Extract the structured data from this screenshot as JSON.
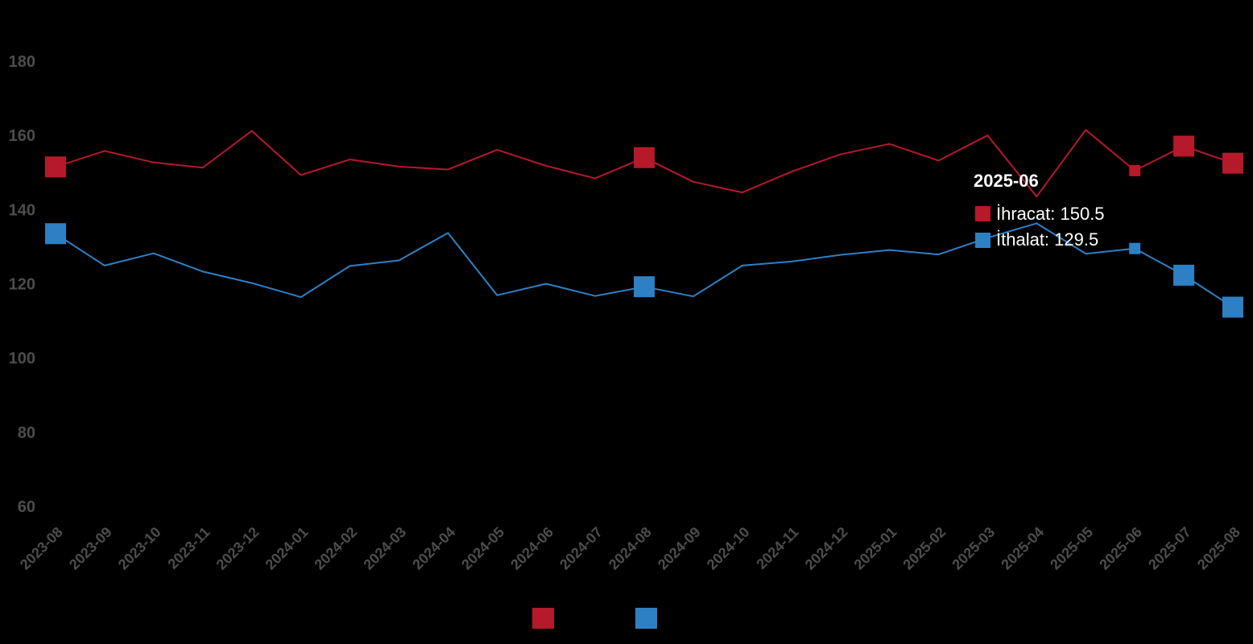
{
  "chart_data": {
    "type": "line",
    "title": "",
    "xlabel": "",
    "ylabel": "",
    "ylim": [
      50,
      190
    ],
    "yticks": [
      60,
      80,
      100,
      120,
      140,
      160,
      180
    ],
    "grid": false,
    "legend_position": "bottom-center",
    "categories": [
      "2023-08",
      "2023-09",
      "2023-10",
      "2023-11",
      "2023-12",
      "2024-01",
      "2024-02",
      "2024-03",
      "2024-04",
      "2024-05",
      "2024-06",
      "2024-07",
      "2024-08",
      "2024-09",
      "2024-10",
      "2024-11",
      "2024-12",
      "2025-01",
      "2025-02",
      "2025-03",
      "2025-04",
      "2025-05",
      "2025-06",
      "2025-07",
      "2025-08"
    ],
    "series": [
      {
        "key": "ihracat",
        "color": "#b5192a",
        "values": [
          151.5,
          155.8,
          152.7,
          151.3,
          161.2,
          149.3,
          153.5,
          151.6,
          150.8,
          156.1,
          151.8,
          148.4,
          154.0,
          147.5,
          144.6,
          150.2,
          154.9,
          157.7,
          153.2,
          160.0,
          143.5,
          161.5,
          150.5,
          157.1,
          152.5
        ],
        "highlight_indices": [
          0,
          12,
          23,
          24
        ]
      },
      {
        "key": "ithalat",
        "color": "#2e80c5",
        "values": [
          133.5,
          124.9,
          128.2,
          123.3,
          120.2,
          116.4,
          124.8,
          126.3,
          133.7,
          116.9,
          120.0,
          116.7,
          119.2,
          116.6,
          124.9,
          126.0,
          127.8,
          129.1,
          127.9,
          132.4,
          136.3,
          128.1,
          129.5,
          122.3,
          113.7
        ],
        "highlight_indices": [
          0,
          12,
          23,
          24
        ]
      }
    ],
    "tooltip": {
      "category": "2025-06",
      "index": 22,
      "rows": [
        {
          "series": "ihracat",
          "text": "İhracat: 150.5",
          "color": "#b5192a"
        },
        {
          "series": "ithalat",
          "text": "İthalat: 129.5",
          "color": "#2e80c5"
        }
      ]
    },
    "legend": [
      {
        "series": "ihracat",
        "color": "#b5192a"
      },
      {
        "series": "ithalat",
        "color": "#2e80c5"
      }
    ]
  }
}
